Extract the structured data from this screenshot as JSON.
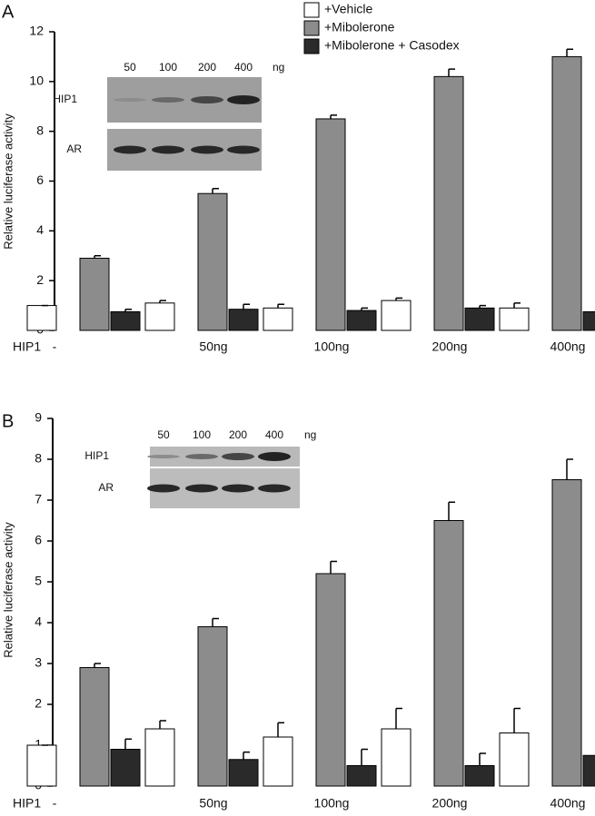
{
  "chart_data": [
    {
      "type": "bar",
      "panel": "A",
      "ylabel": "Relative luciferase activity",
      "xlabel": "HIP1",
      "categories": [
        "-",
        "50ng",
        "100ng",
        "200ng",
        "400ng"
      ],
      "series": [
        {
          "name": "+Vehicle",
          "color": "#ffffff",
          "values": [
            1.0,
            1.1,
            0.9,
            1.2,
            0.9
          ],
          "errors": [
            0,
            0.1,
            0.15,
            0.1,
            0.2
          ]
        },
        {
          "name": "+Mibolerone",
          "color": "#8c8c8c",
          "values": [
            2.9,
            5.5,
            8.5,
            10.2,
            11.0
          ],
          "errors": [
            0.1,
            0.2,
            0.15,
            0.3,
            0.3
          ]
        },
        {
          "name": "+Mibolerone + Casodex",
          "color": "#2a2a2a",
          "values": [
            0.75,
            0.85,
            0.8,
            0.9,
            0.75
          ],
          "errors": [
            0.1,
            0.2,
            0.1,
            0.1,
            0.25
          ]
        }
      ],
      "ylim": [
        0,
        12
      ],
      "yticks": [
        0,
        2,
        4,
        6,
        8,
        10,
        12
      ],
      "legend": "upper right",
      "inset": {
        "lanes": [
          "50",
          "100",
          "200",
          "400"
        ],
        "unit": "ng",
        "rows": [
          "HIP1",
          "AR"
        ]
      }
    },
    {
      "type": "bar",
      "panel": "B",
      "ylabel": "Relative luciferase activity",
      "xlabel": "HIP1",
      "categories": [
        "-",
        "50ng",
        "100ng",
        "200ng",
        "400ng"
      ],
      "series": [
        {
          "color": "#ffffff",
          "values": [
            1.0,
            1.4,
            1.2,
            1.4,
            1.3
          ],
          "errors": [
            0,
            0.2,
            0.35,
            0.5,
            0.6
          ]
        },
        {
          "color": "#8c8c8c",
          "values": [
            2.9,
            3.9,
            5.2,
            6.5,
            7.5
          ],
          "errors": [
            0.1,
            0.2,
            0.3,
            0.45,
            0.5
          ]
        },
        {
          "color": "#2a2a2a",
          "values": [
            0.9,
            0.65,
            0.5,
            0.5,
            0.75
          ],
          "errors": [
            0.25,
            0.18,
            0.4,
            0.3,
            0.45
          ]
        }
      ],
      "ylim": [
        0,
        9
      ],
      "yticks": [
        0,
        1,
        2,
        3,
        4,
        5,
        6,
        7,
        8,
        9
      ],
      "inset": {
        "lanes": [
          "50",
          "100",
          "200",
          "400"
        ],
        "unit": "ng",
        "rows": [
          "HIP1",
          "AR"
        ]
      }
    }
  ]
}
